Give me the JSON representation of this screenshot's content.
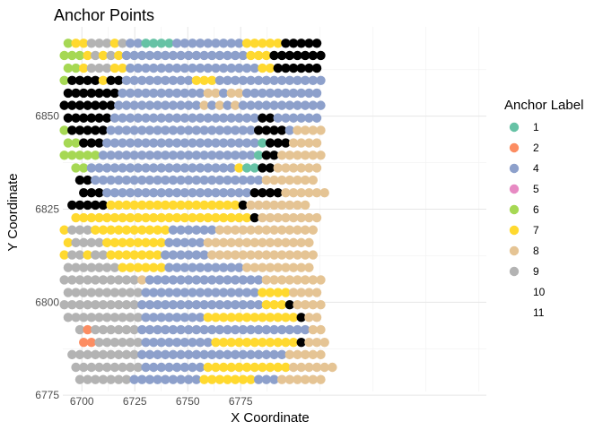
{
  "chart_data": {
    "type": "scatter",
    "title": "Anchor Points",
    "xlabel": "X Coordinate",
    "ylabel": "Y Coordinate",
    "xlim": [
      6691,
      6891
    ],
    "ylim": [
      6776,
      6874
    ],
    "x_ticks": [
      6700,
      6725,
      6750,
      6775
    ],
    "y_ticks": [
      6775,
      6800,
      6825,
      6850
    ],
    "grid": true,
    "legend": {
      "title": "Anchor Label",
      "placement": "right",
      "entries": [
        {
          "label": "1",
          "color": "#66C2A5"
        },
        {
          "label": "2",
          "color": "#FC8D62"
        },
        {
          "label": "4",
          "color": "#8DA0CB"
        },
        {
          "label": "5",
          "color": "#E78AC3"
        },
        {
          "label": "6",
          "color": "#A6D854"
        },
        {
          "label": "7",
          "color": "#FFD92F"
        },
        {
          "label": "8",
          "color": "#E5C494"
        },
        {
          "label": "9",
          "color": "#B3B3B3"
        },
        {
          "label": "10",
          "color": ""
        },
        {
          "label": "11",
          "color": ""
        }
      ]
    },
    "grid_layout": {
      "row_y": [
        6869.6,
        6866.3,
        6862.9,
        6859.6,
        6856.2,
        6852.9,
        6849.5,
        6846.2,
        6842.8,
        6839.5,
        6836.1,
        6832.8,
        6829.4,
        6826.1,
        6822.7,
        6819.4,
        6816.0,
        6812.7,
        6809.3,
        6806.0,
        6802.6,
        6799.3,
        6795.9,
        6792.6,
        6789.2,
        6785.9,
        6782.5,
        6779.2
      ],
      "col_x_even_rows": 6693.5,
      "col_x_odd_rows": 6691.7,
      "col_spacing": 3.67,
      "row_start_col": [
        0,
        0,
        0,
        0,
        0,
        0,
        0,
        0,
        0,
        0,
        1,
        2,
        2,
        1,
        1,
        0,
        0,
        0,
        0,
        0,
        0,
        0,
        0,
        2,
        2,
        1,
        1,
        2
      ]
    },
    "series": [
      {
        "label_rows": [
          "4,5,5,7,7,7,5,7,2,2,0,0,0,0,2,2,2,2,2,2,2,2,2,5,5,5,5,5,8,8,8,8,8",
          "4,4,4,5,7,5,7,5,2,2,2,2,2,2,2,2,2,2,2,2,2,2,2,2,5,5,5,8,8,8,8,8,8,8",
          "4,4,5,7,7,7,5,5,2,2,2,2,2,2,2,2,2,2,2,2,2,2,2,2,2,5,5,8,8,8,8,8,8",
          "4,8,8,8,8,5,8,8,2,2,2,2,2,2,2,2,2,5,5,5,2,2,2,2,2,2,2,2,2,2,2,2,2,2",
          "8,8,8,8,8,8,8,2,2,2,2,2,2,2,2,2,2,2,6,6,2,6,6,2,2,2,2,2,2,2,2,2,2",
          "8,8,8,8,9,8,8,2,2,2,2,2,2,2,2,2,2,2,6,2,6,2,6,2,2,2,2,2,2,2,2,2,2,2",
          "8,8,8,9,9,9,2,2,2,2,2,2,2,2,2,2,2,2,2,2,2,2,2,2,2,8,8,2,2,2,2,2,2",
          "4,9,9,9,9,8,2,2,2,2,2,2,2,2,2,2,2,2,2,2,2,2,2,2,2,8,8,8,8,2,6,6,6,6",
          "4,4,9,9,9,2,2,2,2,2,2,2,2,2,2,2,2,2,2,2,2,2,2,2,2,0,8,8,8,6,6,6,6",
          "4,4,4,4,4,2,2,2,2,2,2,2,2,2,2,2,2,2,2,2,2,2,2,2,2,0,8,8,6,6,6,6,6,6",
          "4,4,2,2,2,2,2,2,2,2,2,2,2,2,2,2,2,2,2,2,2,5,0,0,8,8,6,6,6,6,6,6",
          "8,8,2,2,2,2,2,2,2,2,2,2,2,2,2,2,2,2,2,2,2,2,2,2,6,6,6,6,6,6,6",
          "8,8,8,2,2,2,2,2,2,2,2,2,2,2,2,2,2,2,2,2,2,2,8,8,8,8,6,6,6,6,6,6",
          "8,8,8,8,8,5,5,5,5,5,5,5,5,5,5,5,5,5,5,5,5,5,8,6,6,6,6,6,6,6,6",
          "5,5,5,5,5,5,5,5,5,5,5,5,5,5,5,5,5,5,5,5,5,5,5,8,6,6,6,6,6,6,6,6",
          "5,7,7,7,5,5,5,5,5,5,5,5,5,5,2,2,2,2,2,2,6,6,6,6,6,6,6,6,6,6,6,6,6",
          "5,7,7,7,7,5,5,5,5,5,5,5,5,2,2,2,2,2,6,6,6,6,6,6,6,6,6,6,6,6,6,6",
          "5,7,7,5,7,7,5,5,5,5,5,5,5,2,2,2,2,2,2,6,6,6,6,6,6,6,6,6,6,6,6,6,6",
          "7,7,7,7,7,7,7,5,5,5,5,5,5,2,2,2,2,2,2,2,2,2,2,6,6,6,6,6,6,6,6,6",
          "7,7,7,7,7,7,7,7,7,7,6,2,2,2,2,2,2,2,2,2,2,2,2,2,2,2,6,6,6,6,6,6,6,6",
          "7,7,7,7,7,7,7,7,7,7,2,2,2,2,2,2,2,2,2,2,2,2,2,2,2,5,5,5,5,6,6,6,6",
          "7,7,7,7,7,7,7,7,7,7,2,2,2,2,2,2,2,2,2,2,2,2,2,2,2,2,5,5,5,8,6,6,6,6",
          "7,7,7,7,7,7,7,7,7,7,2,2,2,2,2,2,2,2,5,5,5,5,5,5,5,5,5,5,5,5,8,6,6",
          "7,1,7,7,7,7,7,7,2,2,2,2,2,2,2,2,2,2,2,2,2,2,2,2,2,2,2,2,2,2,6,6",
          "1,1,7,7,7,7,7,7,2,2,2,2,2,2,2,2,2,5,5,5,5,5,5,5,5,5,5,5,8,6,6,6",
          "7,7,7,7,7,7,7,7,7,2,2,2,2,2,2,2,2,2,2,2,2,2,2,2,2,2,2,2,6,6,6,6,6",
          "7,7,7,7,7,7,7,7,7,2,2,2,2,2,2,2,2,5,5,5,5,5,5,5,5,5,5,5,6,6,6,6,6,6",
          "7,7,7,7,7,7,7,2,2,2,2,2,2,2,2,2,5,5,5,5,5,5,5,2,2,2,6,6,6,6,6,6"
        ]
      }
    ],
    "label_codes": [
      "1",
      "2",
      "4",
      "5",
      "6",
      "7",
      "8",
      "9"
    ]
  }
}
